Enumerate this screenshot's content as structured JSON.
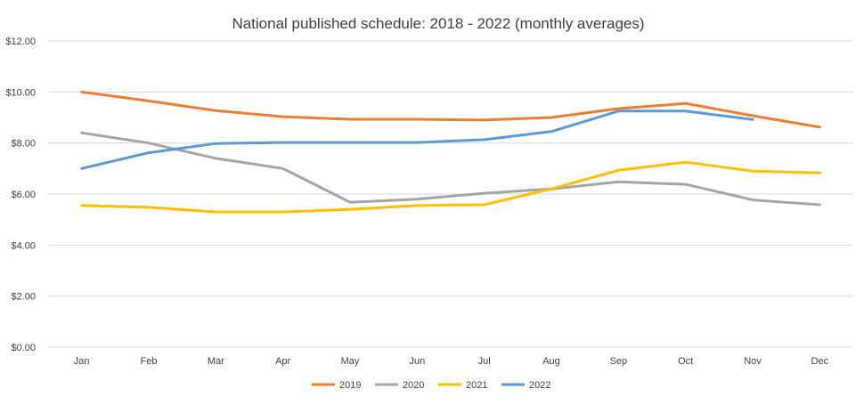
{
  "chart_data": {
    "type": "line",
    "title": "National published schedule: 2018 - 2022 (monthly averages)",
    "xlabel": "",
    "ylabel": "",
    "categories": [
      "Jan",
      "Feb",
      "Mar",
      "Apr",
      "May",
      "Jun",
      "Jul",
      "Aug",
      "Sep",
      "Oct",
      "Nov",
      "Dec"
    ],
    "y_ticks": [
      "$0.00",
      "$2.00",
      "$4.00",
      "$6.00",
      "$8.00",
      "$10.00",
      "$12.00"
    ],
    "ylim": [
      0,
      12
    ],
    "grid": true,
    "legend_position": "bottom",
    "series": [
      {
        "name": "2019",
        "color": "#ED7D31",
        "values": [
          10.0,
          9.65,
          9.27,
          9.03,
          8.93,
          8.93,
          8.9,
          9.0,
          9.35,
          9.55,
          9.07,
          8.62
        ]
      },
      {
        "name": "2020",
        "color": "#A5A5A5",
        "values": [
          8.4,
          8.0,
          7.4,
          7.0,
          5.68,
          5.8,
          6.03,
          6.2,
          6.48,
          6.38,
          5.77,
          5.58
        ]
      },
      {
        "name": "2021",
        "color": "#FFC000",
        "values": [
          5.55,
          5.48,
          5.3,
          5.3,
          5.4,
          5.55,
          5.58,
          6.2,
          6.93,
          7.25,
          6.9,
          6.83
        ]
      },
      {
        "name": "2022",
        "color": "#5B9BD5",
        "values": [
          7.0,
          7.62,
          7.98,
          8.02,
          8.02,
          8.02,
          8.13,
          8.45,
          9.25,
          9.25,
          8.92,
          null
        ]
      }
    ]
  }
}
